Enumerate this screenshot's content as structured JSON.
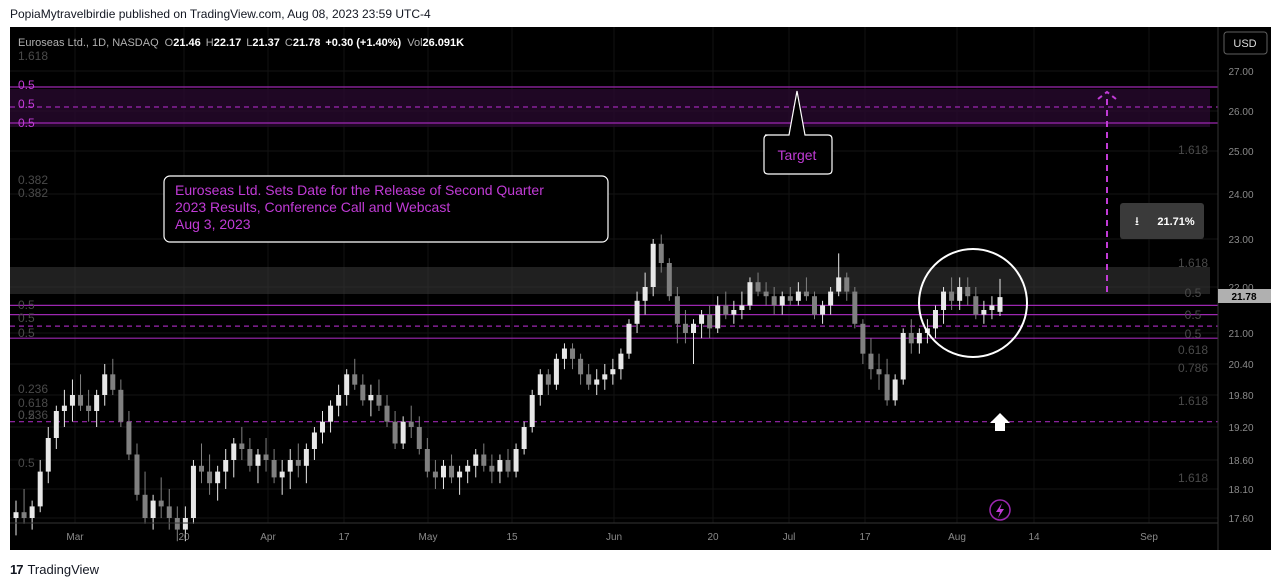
{
  "header": {
    "publisher": "PopiaMytravelbirdie published on TradingView.com, Aug 08, 2023 23:59 UTC-4"
  },
  "legend": {
    "symbol": "Euroseas Ltd.",
    "interval": "1D",
    "exchange": "NASDAQ",
    "o_label": "O",
    "o_value": "21.46",
    "h_label": "H",
    "h_value": "22.17",
    "l_label": "L",
    "l_value": "21.37",
    "c_label": "C",
    "c_value": "21.78",
    "change": "+0.30 (+1.40%)",
    "vol_label": "Vol",
    "vol_value": "26.091K"
  },
  "currency_button": "USD",
  "last_price_label": "21.78",
  "annotations": {
    "news_lines": [
      "Euroseas Ltd. Sets Date for the Release of Second Quarter",
      "2023 Results, Conference Call and Webcast",
      "Aug 3, 2023"
    ],
    "target_label": "Target",
    "measure_label": "21.71%"
  },
  "fib_labels_left": [
    "1.618",
    "0.5",
    "0.5",
    "0.5",
    "0.382",
    "0.382",
    "0.5",
    "0.5",
    "0.5",
    "0.236",
    "0.618",
    "0.236",
    "0.5",
    "0.5"
  ],
  "fib_labels_right": [
    "1.618",
    "1.618",
    "0.5",
    "0.5",
    "0.5",
    "0.618",
    "0.786",
    "1.618",
    "1.618"
  ],
  "footer": {
    "brand": "TradingView",
    "logo_icon": "tradingview-logo-icon"
  },
  "colors": {
    "background": "#000000",
    "up_candle": "#e8e8e8",
    "down_candle": "#808080",
    "fib_line": "#9c27b0",
    "annotation_text": "#c13bd6",
    "target_zone": "#2a0a30",
    "price_tag": "#b0b0b0"
  },
  "chart_data": {
    "type": "candlestick",
    "symbol": "Euroseas Ltd.",
    "ylim": [
      17.5,
      27.3
    ],
    "y_ticks": [
      "27.00",
      "26.00",
      "25.00",
      "24.00",
      "23.00",
      "22.00",
      "21.00",
      "20.40",
      "19.80",
      "19.20",
      "18.60",
      "18.10",
      "17.60"
    ],
    "x_ticks": [
      "Mar",
      "20",
      "Apr",
      "17",
      "May",
      "15",
      "Jun",
      "20",
      "Jul",
      "17",
      "Aug",
      "14",
      "Sep"
    ],
    "start_date": "2023-02-13",
    "target_price": 26.5,
    "resistance_zone": [
      21.9,
      22.4
    ],
    "fib_lines": [
      26.6,
      26.1,
      25.7,
      21.6,
      21.4,
      21.15,
      20.9,
      19.3
    ],
    "ohlc": [
      [
        17.6,
        17.9,
        17.3,
        17.7
      ],
      [
        17.7,
        18.1,
        17.5,
        17.6
      ],
      [
        17.6,
        17.9,
        17.4,
        17.8
      ],
      [
        17.8,
        18.6,
        17.7,
        18.4
      ],
      [
        18.4,
        19.2,
        18.2,
        19.0
      ],
      [
        19.0,
        19.6,
        18.8,
        19.5
      ],
      [
        19.5,
        19.9,
        19.2,
        19.6
      ],
      [
        19.6,
        20.1,
        19.3,
        19.8
      ],
      [
        19.8,
        20.2,
        19.5,
        19.6
      ],
      [
        19.6,
        19.9,
        19.3,
        19.5
      ],
      [
        19.5,
        19.9,
        19.2,
        19.8
      ],
      [
        19.8,
        20.4,
        19.6,
        20.2
      ],
      [
        20.2,
        20.5,
        19.8,
        19.9
      ],
      [
        19.9,
        20.1,
        19.2,
        19.3
      ],
      [
        19.3,
        19.5,
        18.6,
        18.7
      ],
      [
        18.7,
        18.9,
        17.9,
        18.0
      ],
      [
        18.0,
        18.4,
        17.5,
        17.6
      ],
      [
        17.6,
        18.0,
        17.4,
        17.9
      ],
      [
        17.9,
        18.3,
        17.6,
        17.8
      ],
      [
        17.8,
        18.1,
        17.4,
        17.6
      ],
      [
        17.6,
        17.8,
        17.2,
        17.4
      ],
      [
        17.4,
        17.8,
        17.2,
        17.6
      ],
      [
        17.6,
        18.6,
        17.5,
        18.5
      ],
      [
        18.5,
        18.9,
        18.2,
        18.4
      ],
      [
        18.4,
        18.7,
        18.0,
        18.2
      ],
      [
        18.2,
        18.5,
        17.9,
        18.4
      ],
      [
        18.4,
        18.8,
        18.1,
        18.6
      ],
      [
        18.6,
        19.0,
        18.3,
        18.9
      ],
      [
        18.9,
        19.2,
        18.6,
        18.8
      ],
      [
        18.8,
        19.0,
        18.4,
        18.5
      ],
      [
        18.5,
        18.8,
        18.2,
        18.7
      ],
      [
        18.7,
        19.0,
        18.4,
        18.6
      ],
      [
        18.6,
        18.8,
        18.2,
        18.3
      ],
      [
        18.3,
        18.6,
        18.0,
        18.4
      ],
      [
        18.4,
        18.8,
        18.1,
        18.6
      ],
      [
        18.6,
        18.9,
        18.3,
        18.5
      ],
      [
        18.5,
        18.9,
        18.2,
        18.8
      ],
      [
        18.8,
        19.2,
        18.6,
        19.1
      ],
      [
        19.1,
        19.5,
        18.9,
        19.3
      ],
      [
        19.3,
        19.7,
        19.1,
        19.6
      ],
      [
        19.6,
        20.0,
        19.4,
        19.8
      ],
      [
        19.8,
        20.3,
        19.6,
        20.2
      ],
      [
        20.2,
        20.5,
        19.9,
        20.0
      ],
      [
        20.0,
        20.2,
        19.6,
        19.7
      ],
      [
        19.7,
        20.0,
        19.4,
        19.8
      ],
      [
        19.8,
        20.1,
        19.5,
        19.6
      ],
      [
        19.6,
        19.8,
        19.2,
        19.3
      ],
      [
        19.3,
        19.5,
        18.8,
        18.9
      ],
      [
        18.9,
        19.4,
        18.8,
        19.3
      ],
      [
        19.3,
        19.6,
        19.0,
        19.2
      ],
      [
        19.2,
        19.4,
        18.7,
        18.8
      ],
      [
        18.8,
        19.0,
        18.3,
        18.4
      ],
      [
        18.4,
        18.6,
        18.1,
        18.3
      ],
      [
        18.3,
        18.6,
        18.1,
        18.5
      ],
      [
        18.5,
        18.7,
        18.2,
        18.3
      ],
      [
        18.3,
        18.5,
        18.0,
        18.4
      ],
      [
        18.4,
        18.6,
        18.2,
        18.5
      ],
      [
        18.5,
        18.8,
        18.3,
        18.7
      ],
      [
        18.7,
        18.9,
        18.4,
        18.5
      ],
      [
        18.5,
        18.7,
        18.2,
        18.4
      ],
      [
        18.4,
        18.7,
        18.2,
        18.6
      ],
      [
        18.6,
        18.8,
        18.3,
        18.4
      ],
      [
        18.4,
        18.9,
        18.3,
        18.8
      ],
      [
        18.8,
        19.3,
        18.7,
        19.2
      ],
      [
        19.2,
        19.9,
        19.1,
        19.8
      ],
      [
        19.8,
        20.3,
        19.6,
        20.2
      ],
      [
        20.2,
        20.3,
        19.8,
        20.0
      ],
      [
        20.0,
        20.6,
        19.9,
        20.5
      ],
      [
        20.5,
        20.8,
        20.3,
        20.7
      ],
      [
        20.7,
        20.8,
        20.3,
        20.5
      ],
      [
        20.5,
        20.6,
        20.0,
        20.2
      ],
      [
        20.2,
        20.4,
        19.9,
        20.0
      ],
      [
        20.0,
        20.3,
        19.8,
        20.1
      ],
      [
        20.1,
        20.4,
        19.9,
        20.2
      ],
      [
        20.2,
        20.5,
        20.0,
        20.3
      ],
      [
        20.3,
        20.7,
        20.1,
        20.6
      ],
      [
        20.6,
        21.3,
        20.5,
        21.2
      ],
      [
        21.2,
        21.9,
        21.0,
        21.7
      ],
      [
        21.7,
        22.3,
        21.4,
        22.0
      ],
      [
        22.0,
        23.0,
        21.8,
        22.9
      ],
      [
        22.9,
        23.1,
        22.3,
        22.5
      ],
      [
        22.5,
        22.6,
        21.7,
        21.8
      ],
      [
        21.8,
        22.0,
        20.8,
        21.2
      ],
      [
        21.2,
        21.5,
        20.8,
        21.0
      ],
      [
        21.0,
        21.3,
        20.4,
        21.2
      ],
      [
        21.2,
        21.5,
        20.9,
        21.4
      ],
      [
        21.4,
        21.6,
        20.9,
        21.1
      ],
      [
        21.1,
        21.8,
        21.0,
        21.6
      ],
      [
        21.6,
        21.9,
        21.3,
        21.4
      ],
      [
        21.4,
        21.7,
        21.2,
        21.5
      ],
      [
        21.5,
        21.9,
        21.3,
        21.6
      ],
      [
        21.6,
        22.2,
        21.5,
        22.1
      ],
      [
        22.1,
        22.3,
        21.8,
        21.9
      ],
      [
        21.9,
        22.1,
        21.6,
        21.8
      ],
      [
        21.8,
        22.0,
        21.4,
        21.6
      ],
      [
        21.6,
        21.9,
        21.4,
        21.8
      ],
      [
        21.8,
        22.0,
        21.6,
        21.7
      ],
      [
        21.7,
        22.1,
        21.6,
        21.9
      ],
      [
        21.9,
        22.2,
        21.7,
        21.8
      ],
      [
        21.8,
        21.9,
        21.3,
        21.4
      ],
      [
        21.4,
        21.7,
        21.2,
        21.6
      ],
      [
        21.6,
        22.0,
        21.4,
        21.9
      ],
      [
        21.9,
        22.7,
        21.8,
        22.2
      ],
      [
        22.2,
        22.3,
        21.7,
        21.9
      ],
      [
        21.9,
        22.0,
        21.1,
        21.2
      ],
      [
        21.2,
        21.3,
        20.4,
        20.6
      ],
      [
        20.6,
        20.9,
        20.1,
        20.3
      ],
      [
        20.3,
        20.6,
        19.9,
        20.2
      ],
      [
        20.2,
        20.5,
        19.6,
        19.7
      ],
      [
        19.7,
        20.2,
        19.6,
        20.1
      ],
      [
        20.1,
        21.1,
        20.0,
        21.0
      ],
      [
        21.0,
        21.3,
        20.6,
        20.8
      ],
      [
        20.8,
        21.1,
        20.6,
        21.0
      ],
      [
        21.0,
        21.3,
        20.8,
        21.1
      ],
      [
        21.1,
        21.6,
        20.9,
        21.5
      ],
      [
        21.5,
        22.0,
        21.2,
        21.9
      ],
      [
        21.9,
        22.2,
        21.5,
        21.7
      ],
      [
        21.7,
        22.2,
        21.5,
        22.0
      ],
      [
        22.0,
        22.2,
        21.6,
        21.8
      ],
      [
        21.8,
        22.0,
        21.3,
        21.4
      ],
      [
        21.4,
        21.7,
        21.2,
        21.5
      ],
      [
        21.5,
        21.8,
        21.3,
        21.6
      ],
      [
        21.46,
        22.17,
        21.37,
        21.78
      ]
    ]
  }
}
